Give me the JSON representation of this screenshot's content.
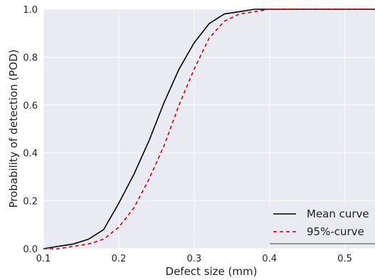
{
  "chart_data": {
    "type": "line",
    "title": "",
    "xlabel": "Defect size (mm)",
    "ylabel": "Probability of detection (POD)",
    "xlim": [
      0.1,
      0.54
    ],
    "ylim": [
      0.0,
      1.0
    ],
    "x_ticks": [
      "0.1",
      "0.2",
      "0.3",
      "0.4",
      "0.5"
    ],
    "y_ticks": [
      "0.0",
      "0.2",
      "0.4",
      "0.6",
      "0.8",
      "1.0"
    ],
    "grid": true,
    "legend_position": "bottom-right",
    "series": [
      {
        "name": "Mean curve",
        "color": "#000000",
        "style": "solid",
        "x": [
          0.1,
          0.12,
          0.14,
          0.16,
          0.18,
          0.2,
          0.22,
          0.24,
          0.26,
          0.28,
          0.3,
          0.32,
          0.34,
          0.36,
          0.38,
          0.4,
          0.45,
          0.5,
          0.54
        ],
        "y": [
          0.0,
          0.01,
          0.02,
          0.04,
          0.08,
          0.19,
          0.31,
          0.45,
          0.61,
          0.75,
          0.86,
          0.94,
          0.98,
          0.99,
          1.0,
          1.0,
          1.0,
          1.0,
          1.0
        ]
      },
      {
        "name": "95%-curve",
        "color": "#cc0000",
        "style": "dashed",
        "x": [
          0.1,
          0.12,
          0.14,
          0.16,
          0.18,
          0.2,
          0.22,
          0.24,
          0.26,
          0.28,
          0.3,
          0.32,
          0.34,
          0.36,
          0.38,
          0.4,
          0.45,
          0.5,
          0.54
        ],
        "y": [
          0.0,
          0.0,
          0.01,
          0.02,
          0.04,
          0.09,
          0.17,
          0.29,
          0.43,
          0.6,
          0.75,
          0.88,
          0.95,
          0.98,
          0.99,
          1.0,
          1.0,
          1.0,
          1.0
        ]
      }
    ]
  }
}
